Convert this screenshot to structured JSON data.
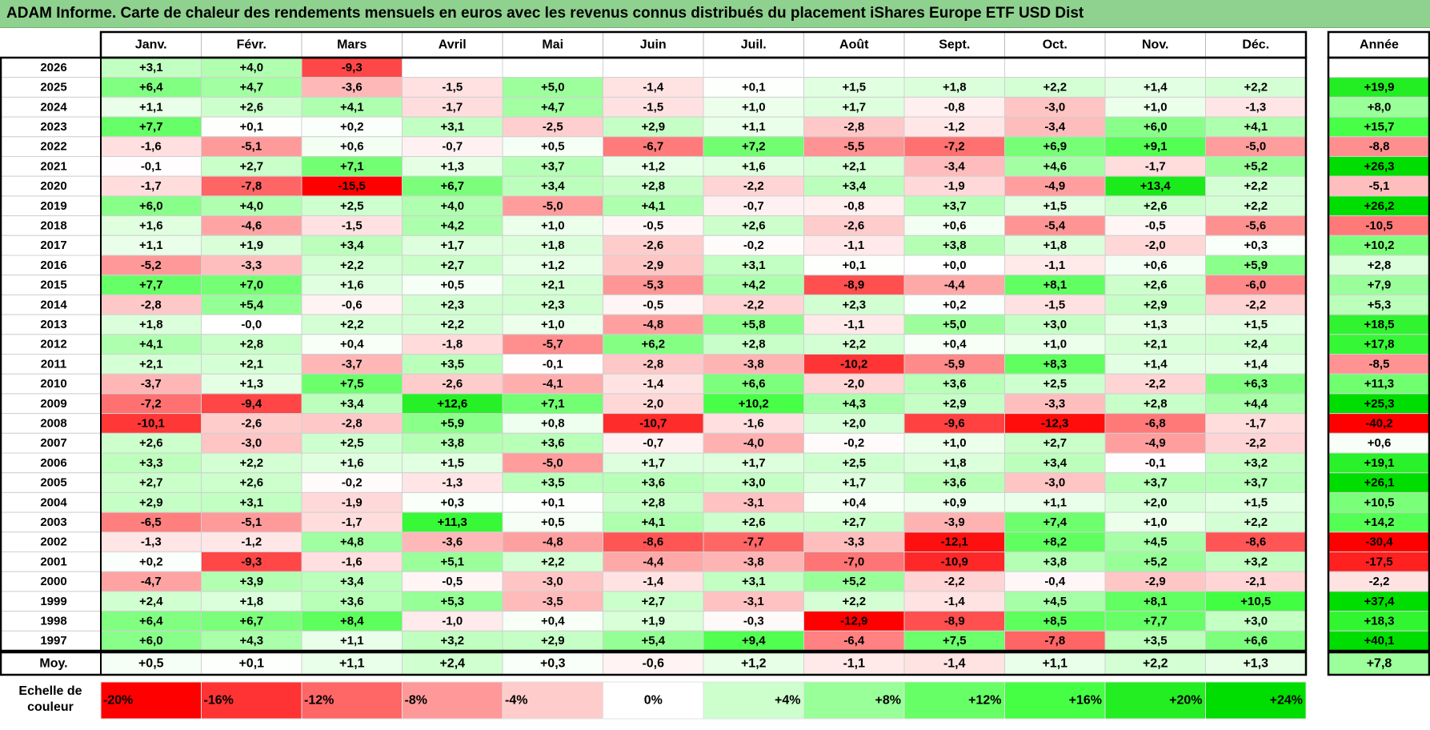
{
  "title": "ADAM Informe. Carte de chaleur des rendements mensuels en euros avec les revenus connus distribués du placement iShares Europe ETF USD Dist",
  "chart_data": {
    "type": "heatmap",
    "title": "ADAM Informe. Carte de chaleur des rendements mensuels en euros avec les revenus connus distribués du placement iShares Europe ETF USD Dist",
    "columns": [
      "Janv.",
      "Févr.",
      "Mars",
      "Avril",
      "Mai",
      "Juin",
      "Juil.",
      "Août",
      "Sept.",
      "Oct.",
      "Nov.",
      "Déc."
    ],
    "annual_label": "Année",
    "rows": [
      {
        "year": "2026",
        "values": [
          "+3,1",
          "+4,0",
          "-9,3",
          "",
          "",
          "",
          "",
          "",
          "",
          "",
          "",
          ""
        ],
        "annual": ""
      },
      {
        "year": "2025",
        "values": [
          "+6,4",
          "+4,7",
          "-3,6",
          "-1,5",
          "+5,0",
          "-1,4",
          "+0,1",
          "+1,5",
          "+1,8",
          "+2,2",
          "+1,4",
          "+2,2"
        ],
        "annual": "+19,9"
      },
      {
        "year": "2024",
        "values": [
          "+1,1",
          "+2,6",
          "+4,1",
          "-1,7",
          "+4,7",
          "-1,5",
          "+1,0",
          "+1,7",
          "-0,8",
          "-3,0",
          "+1,0",
          "-1,3"
        ],
        "annual": "+8,0"
      },
      {
        "year": "2023",
        "values": [
          "+7,7",
          "+0,1",
          "+0,2",
          "+3,1",
          "-2,5",
          "+2,9",
          "+1,1",
          "-2,8",
          "-1,2",
          "-3,4",
          "+6,0",
          "+4,1"
        ],
        "annual": "+15,7"
      },
      {
        "year": "2022",
        "values": [
          "-1,6",
          "-5,1",
          "+0,6",
          "-0,7",
          "+0,5",
          "-6,7",
          "+7,2",
          "-5,5",
          "-7,2",
          "+6,9",
          "+9,1",
          "-5,0"
        ],
        "annual": "-8,8"
      },
      {
        "year": "2021",
        "values": [
          "-0,1",
          "+2,7",
          "+7,1",
          "+1,3",
          "+3,7",
          "+1,2",
          "+1,6",
          "+2,1",
          "-3,4",
          "+4,6",
          "-1,7",
          "+5,2"
        ],
        "annual": "+26,3"
      },
      {
        "year": "2020",
        "values": [
          "-1,7",
          "-7,8",
          "-15,5",
          "+6,7",
          "+3,4",
          "+2,8",
          "-2,2",
          "+3,4",
          "-1,9",
          "-4,9",
          "+13,4",
          "+2,2"
        ],
        "annual": "-5,1"
      },
      {
        "year": "2019",
        "values": [
          "+6,0",
          "+4,0",
          "+2,5",
          "+4,0",
          "-5,0",
          "+4,1",
          "-0,7",
          "-0,8",
          "+3,7",
          "+1,5",
          "+2,6",
          "+2,2"
        ],
        "annual": "+26,2"
      },
      {
        "year": "2018",
        "values": [
          "+1,6",
          "-4,6",
          "-1,5",
          "+4,2",
          "+1,0",
          "-0,5",
          "+2,6",
          "-2,6",
          "+0,6",
          "-5,4",
          "-0,5",
          "-5,6"
        ],
        "annual": "-10,5"
      },
      {
        "year": "2017",
        "values": [
          "+1,1",
          "+1,9",
          "+3,4",
          "+1,7",
          "+1,8",
          "-2,6",
          "-0,2",
          "-1,1",
          "+3,8",
          "+1,8",
          "-2,0",
          "+0,3"
        ],
        "annual": "+10,2"
      },
      {
        "year": "2016",
        "values": [
          "-5,2",
          "-3,3",
          "+2,2",
          "+2,7",
          "+1,2",
          "-2,9",
          "+3,1",
          "+0,1",
          "+0,0",
          "-1,1",
          "+0,6",
          "+5,9"
        ],
        "annual": "+2,8"
      },
      {
        "year": "2015",
        "values": [
          "+7,7",
          "+7,0",
          "+1,6",
          "+0,5",
          "+2,1",
          "-5,3",
          "+4,2",
          "-8,9",
          "-4,4",
          "+8,1",
          "+2,6",
          "-6,0"
        ],
        "annual": "+7,9"
      },
      {
        "year": "2014",
        "values": [
          "-2,8",
          "+5,4",
          "-0,6",
          "+2,3",
          "+2,3",
          "-0,5",
          "-2,2",
          "+2,3",
          "+0,2",
          "-1,5",
          "+2,9",
          "-2,2"
        ],
        "annual": "+5,3"
      },
      {
        "year": "2013",
        "values": [
          "+1,8",
          "-0,0",
          "+2,2",
          "+2,2",
          "+1,0",
          "-4,8",
          "+5,8",
          "-1,1",
          "+5,0",
          "+3,0",
          "+1,3",
          "+1,5"
        ],
        "annual": "+18,5"
      },
      {
        "year": "2012",
        "values": [
          "+4,1",
          "+2,8",
          "+0,4",
          "-1,8",
          "-5,7",
          "+6,2",
          "+2,8",
          "+2,2",
          "+0,4",
          "+1,0",
          "+2,1",
          "+2,4"
        ],
        "annual": "+17,8"
      },
      {
        "year": "2011",
        "values": [
          "+2,1",
          "+2,1",
          "-3,7",
          "+3,5",
          "-0,1",
          "-2,8",
          "-3,8",
          "-10,2",
          "-5,9",
          "+8,3",
          "+1,4",
          "+1,4"
        ],
        "annual": "-8,5"
      },
      {
        "year": "2010",
        "values": [
          "-3,7",
          "+1,3",
          "+7,5",
          "-2,6",
          "-4,1",
          "-1,4",
          "+6,6",
          "-2,0",
          "+3,6",
          "+2,5",
          "-2,2",
          "+6,3"
        ],
        "annual": "+11,3"
      },
      {
        "year": "2009",
        "values": [
          "-7,2",
          "-9,4",
          "+3,4",
          "+12,6",
          "+7,1",
          "-2,0",
          "+10,2",
          "+4,3",
          "+2,9",
          "-3,3",
          "+2,8",
          "+4,4"
        ],
        "annual": "+25,3"
      },
      {
        "year": "2008",
        "values": [
          "-10,1",
          "-2,6",
          "-2,8",
          "+5,9",
          "+0,8",
          "-10,7",
          "-1,6",
          "+2,0",
          "-9,6",
          "-12,3",
          "-6,8",
          "-1,7"
        ],
        "annual": "-40,2"
      },
      {
        "year": "2007",
        "values": [
          "+2,6",
          "-3,0",
          "+2,5",
          "+3,8",
          "+3,6",
          "-0,7",
          "-4,0",
          "-0,2",
          "+1,0",
          "+2,7",
          "-4,9",
          "-2,2"
        ],
        "annual": "+0,6"
      },
      {
        "year": "2006",
        "values": [
          "+3,3",
          "+2,2",
          "+1,6",
          "+1,5",
          "-5,0",
          "+1,7",
          "+1,7",
          "+2,5",
          "+1,8",
          "+3,4",
          "-0,1",
          "+3,2"
        ],
        "annual": "+19,1"
      },
      {
        "year": "2005",
        "values": [
          "+2,7",
          "+2,6",
          "-0,2",
          "-1,3",
          "+3,5",
          "+3,6",
          "+3,0",
          "+1,7",
          "+3,6",
          "-3,0",
          "+3,7",
          "+3,7"
        ],
        "annual": "+26,1"
      },
      {
        "year": "2004",
        "values": [
          "+2,9",
          "+3,1",
          "-1,9",
          "+0,3",
          "+0,1",
          "+2,8",
          "-3,1",
          "+0,4",
          "+0,9",
          "+1,1",
          "+2,0",
          "+1,5"
        ],
        "annual": "+10,5"
      },
      {
        "year": "2003",
        "values": [
          "-6,5",
          "-5,1",
          "-1,7",
          "+11,3",
          "+0,5",
          "+4,1",
          "+2,6",
          "+2,7",
          "-3,9",
          "+7,4",
          "+1,0",
          "+2,2"
        ],
        "annual": "+14,2"
      },
      {
        "year": "2002",
        "values": [
          "-1,3",
          "-1,2",
          "+4,8",
          "-3,6",
          "-4,8",
          "-8,6",
          "-7,7",
          "-3,3",
          "-12,1",
          "+8,2",
          "+4,5",
          "-8,6"
        ],
        "annual": "-30,4"
      },
      {
        "year": "2001",
        "values": [
          "+0,2",
          "-9,3",
          "-1,6",
          "+5,1",
          "+2,2",
          "-4,4",
          "-3,8",
          "-7,0",
          "-10,9",
          "+3,8",
          "+5,2",
          "+3,2"
        ],
        "annual": "-17,5"
      },
      {
        "year": "2000",
        "values": [
          "-4,7",
          "+3,9",
          "+3,4",
          "-0,5",
          "-3,0",
          "-1,4",
          "+3,1",
          "+5,2",
          "-2,2",
          "-0,4",
          "-2,9",
          "-2,1"
        ],
        "annual": "-2,2"
      },
      {
        "year": "1999",
        "values": [
          "+2,4",
          "+1,8",
          "+3,6",
          "+5,3",
          "-3,5",
          "+2,7",
          "-3,1",
          "+2,2",
          "-1,4",
          "+4,5",
          "+8,1",
          "+10,5"
        ],
        "annual": "+37,4"
      },
      {
        "year": "1998",
        "values": [
          "+6,4",
          "+6,7",
          "+8,4",
          "-1,0",
          "+0,4",
          "+1,9",
          "-0,3",
          "-12,9",
          "-8,9",
          "+8,5",
          "+7,7",
          "+3,0"
        ],
        "annual": "+18,3"
      },
      {
        "year": "1997",
        "values": [
          "+6,0",
          "+4,3",
          "+1,1",
          "+3,2",
          "+2,9",
          "+5,4",
          "+9,4",
          "-6,4",
          "+7,5",
          "-7,8",
          "+3,5",
          "+6,6"
        ],
        "annual": "+40,1"
      }
    ],
    "average": {
      "label": "Moy.",
      "values": [
        "+0,5",
        "+0,1",
        "+1,1",
        "+2,4",
        "+0,3",
        "-0,6",
        "+1,2",
        "-1,1",
        "-1,4",
        "+1,1",
        "+2,2",
        "+1,3"
      ],
      "annual": "+7,8"
    },
    "color_scale": {
      "label_line1": "Echelle de",
      "label_line2": "couleur",
      "stops": [
        {
          "label": "-20%",
          "value": -20,
          "color": "#ff0000"
        },
        {
          "label": "-16%",
          "value": -16,
          "color": "#ff3333"
        },
        {
          "label": "-12%",
          "value": -12,
          "color": "#ff6666"
        },
        {
          "label": "-8%",
          "value": -8,
          "color": "#ff9999"
        },
        {
          "label": "-4%",
          "value": -4,
          "color": "#ffcccc"
        },
        {
          "label": "0%",
          "value": 0,
          "color": "#ffffff"
        },
        {
          "label": "+4%",
          "value": 4,
          "color": "#ccffcc"
        },
        {
          "label": "+8%",
          "value": 8,
          "color": "#99ff99"
        },
        {
          "label": "+12%",
          "value": 12,
          "color": "#66ff66"
        },
        {
          "label": "+16%",
          "value": 16,
          "color": "#44ff44"
        },
        {
          "label": "+20%",
          "value": 20,
          "color": "#22ee22"
        },
        {
          "label": "+24%",
          "value": 24,
          "color": "#00dd00"
        }
      ]
    }
  }
}
